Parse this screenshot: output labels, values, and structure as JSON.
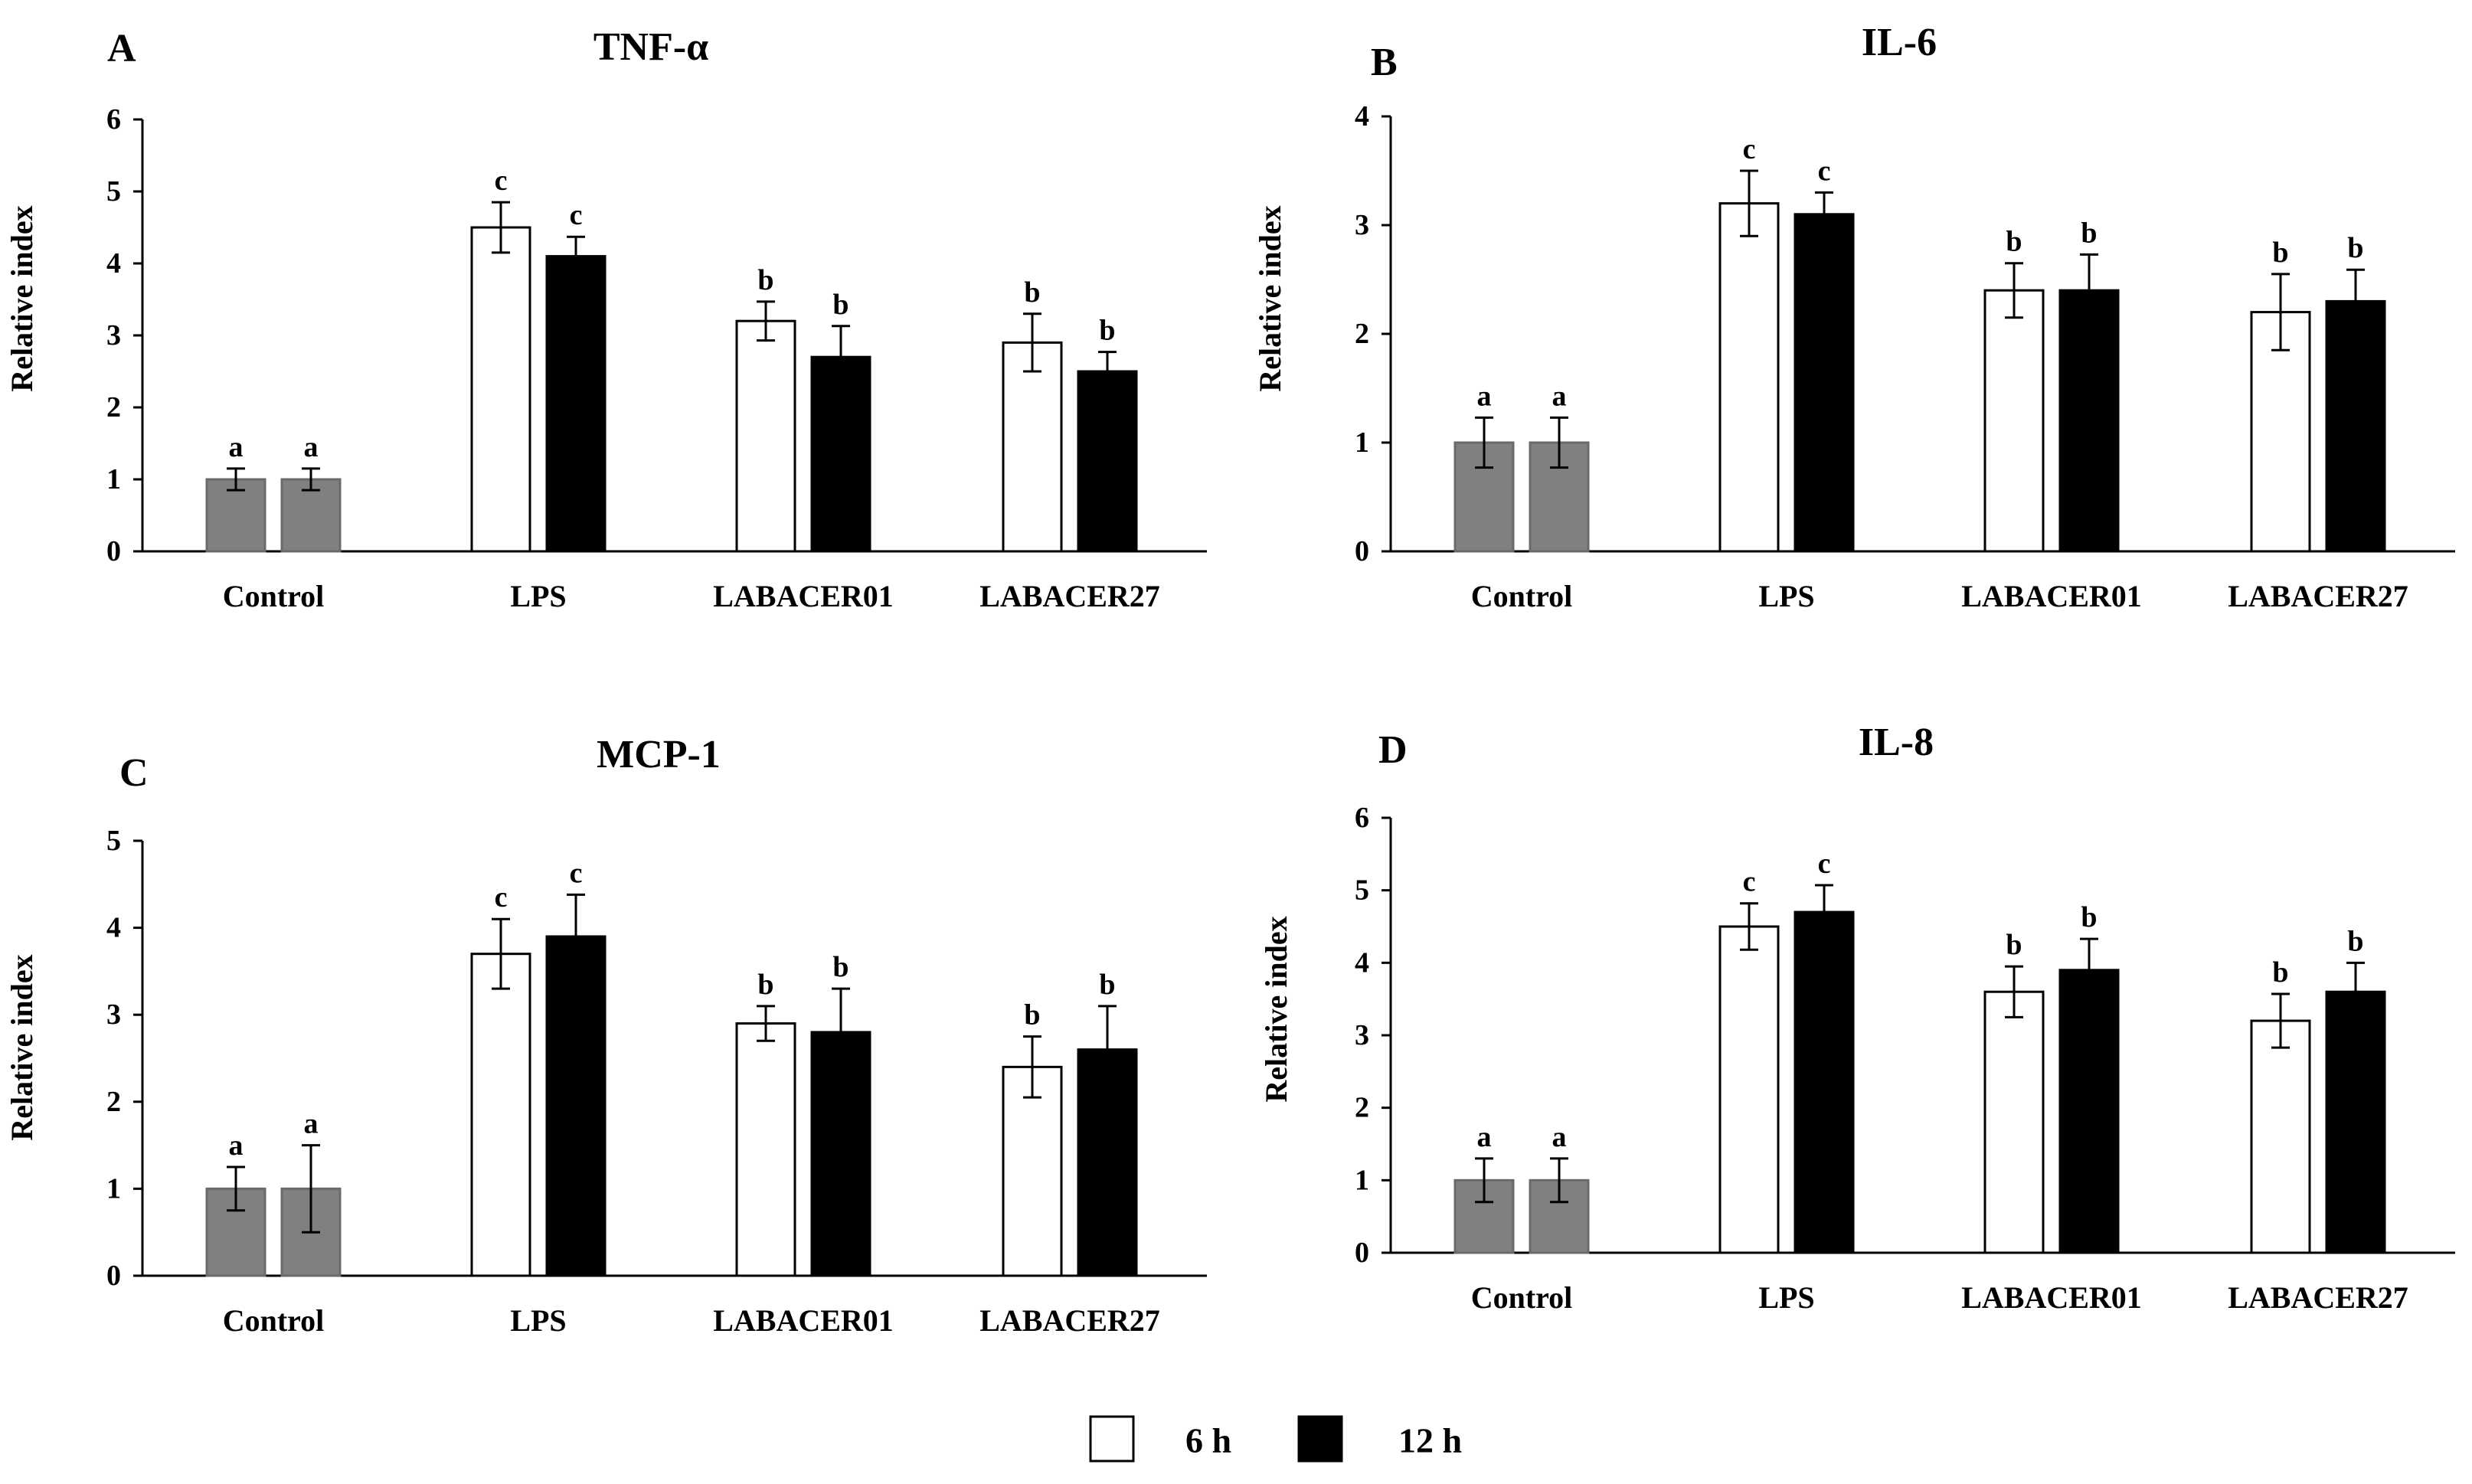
{
  "legend": {
    "items": [
      {
        "label": "6 h",
        "color": "#ffffff"
      },
      {
        "label": "12 h",
        "color": "#000000"
      }
    ]
  },
  "chart_data": [
    {
      "type": "bar",
      "panel": "A",
      "title": "TNF-α",
      "ylabel": "Relative index",
      "xlabel": "",
      "ylim": [
        0,
        6
      ],
      "yticks": [
        "0",
        "1",
        "2",
        "3",
        "4",
        "5",
        "6"
      ],
      "categories": [
        "Control",
        "LPS",
        "LABACER01",
        "LABACER27"
      ],
      "series": [
        {
          "name": "6 h",
          "values": [
            1.0,
            4.5,
            3.2,
            2.9
          ],
          "errors": [
            0.15,
            0.35,
            0.27,
            0.4
          ],
          "letters": [
            "a",
            "c",
            "b",
            "b"
          ]
        },
        {
          "name": "12 h",
          "values": [
            1.0,
            4.1,
            2.7,
            2.5
          ],
          "errors": [
            0.15,
            0.27,
            0.43,
            0.27
          ],
          "letters": [
            "a",
            "c",
            "b",
            "b"
          ]
        }
      ]
    },
    {
      "type": "bar",
      "panel": "B",
      "title": "IL-6",
      "ylabel": "Relative index",
      "xlabel": "",
      "ylim": [
        0,
        4
      ],
      "yticks": [
        "0",
        "1",
        "2",
        "3",
        "4"
      ],
      "categories": [
        "Control",
        "LPS",
        "LABACER01",
        "LABACER27"
      ],
      "series": [
        {
          "name": "6 h",
          "values": [
            1.0,
            3.2,
            2.4,
            2.2
          ],
          "errors": [
            0.23,
            0.3,
            0.25,
            0.35
          ],
          "letters": [
            "a",
            "c",
            "b",
            "b"
          ]
        },
        {
          "name": "12 h",
          "values": [
            1.0,
            3.1,
            2.4,
            2.3
          ],
          "errors": [
            0.23,
            0.2,
            0.33,
            0.29
          ],
          "letters": [
            "a",
            "c",
            "b",
            "b"
          ]
        }
      ]
    },
    {
      "type": "bar",
      "panel": "C",
      "title": "MCP-1",
      "ylabel": "Relative index",
      "xlabel": "",
      "ylim": [
        0,
        5
      ],
      "yticks": [
        "0",
        "1",
        "2",
        "3",
        "4",
        "5"
      ],
      "categories": [
        "Control",
        "LPS",
        "LABACER01",
        "LABACER27"
      ],
      "series": [
        {
          "name": "6 h",
          "values": [
            1.0,
            3.7,
            2.9,
            2.4
          ],
          "errors": [
            0.25,
            0.4,
            0.2,
            0.35
          ],
          "letters": [
            "a",
            "c",
            "b",
            "b"
          ]
        },
        {
          "name": "12 h",
          "values": [
            1.0,
            3.9,
            2.8,
            2.6
          ],
          "errors": [
            0.5,
            0.48,
            0.5,
            0.5
          ],
          "letters": [
            "a",
            "c",
            "b",
            "b"
          ]
        }
      ]
    },
    {
      "type": "bar",
      "panel": "D",
      "title": "IL-8",
      "ylabel": "Relative index",
      "xlabel": "",
      "ylim": [
        0,
        6
      ],
      "yticks": [
        "0",
        "1",
        "2",
        "3",
        "4",
        "5",
        "6"
      ],
      "categories": [
        "Control",
        "LPS",
        "LABACER01",
        "LABACER27"
      ],
      "series": [
        {
          "name": "6 h",
          "values": [
            1.0,
            4.5,
            3.6,
            3.2
          ],
          "errors": [
            0.3,
            0.32,
            0.35,
            0.37
          ],
          "letters": [
            "a",
            "c",
            "b",
            "b"
          ]
        },
        {
          "name": "12 h",
          "values": [
            1.0,
            4.7,
            3.9,
            3.6
          ],
          "errors": [
            0.3,
            0.37,
            0.43,
            0.4
          ],
          "letters": [
            "a",
            "c",
            "b",
            "b"
          ]
        }
      ]
    }
  ]
}
